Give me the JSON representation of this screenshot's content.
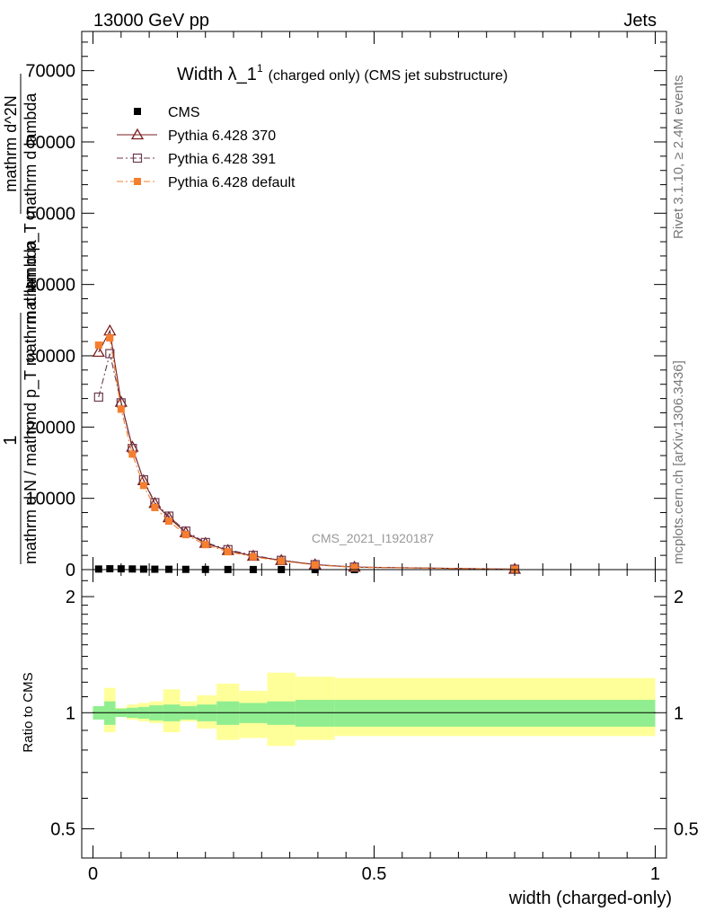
{
  "header": {
    "left": "13000 GeV pp",
    "right": "Jets"
  },
  "side": {
    "rivet": "Rivet 3.1.10, ≥ 2.4M events",
    "mcplots": "mcplots.cern.ch [arXiv:1306.3436]"
  },
  "watermark": "CMS_2021_I1920187",
  "chart_data": [
    {
      "type": "line",
      "title": "Width λ_1",
      "title_sup": "1",
      "subtitle": "(charged only) (CMS jet substructure)",
      "ylabel_stack": [
        "1",
        "mathrm d N / mathrmd p_T mathrm d lambda",
        "mathrm d^2N",
        "mathrm d p_T mathrm d lambda"
      ],
      "xlim": [
        -0.02,
        1.02
      ],
      "ylim": [
        0,
        75500
      ],
      "y_ticks": [
        0,
        10000,
        20000,
        30000,
        40000,
        50000,
        60000,
        70000
      ],
      "y_tick_labels": [
        "0",
        "10000",
        "20000",
        "30000",
        "40000",
        "50000",
        "60000",
        "70000"
      ],
      "legend_placement": "top-left",
      "x": [
        0.01,
        0.03,
        0.05,
        0.07,
        0.09,
        0.11,
        0.135,
        0.165,
        0.2,
        0.24,
        0.285,
        0.335,
        0.395,
        0.465,
        0.75
      ],
      "series": [
        {
          "name": "CMS",
          "color": "#000000",
          "marker": "square",
          "values": [
            80,
            120,
            110,
            90,
            70,
            55,
            45,
            35,
            25,
            18,
            12,
            8,
            4,
            2,
            0.2
          ]
        },
        {
          "name": "Pythia 6.428 370",
          "color": "#7b1c1c",
          "marker": "triangle-open",
          "dash": "solid",
          "values": [
            30500,
            33500,
            23500,
            17200,
            12500,
            9300,
            7300,
            5200,
            3700,
            2700,
            1900,
            1300,
            700,
            350,
            60
          ]
        },
        {
          "name": "Pythia 6.428 391",
          "color": "#6b3a50",
          "marker": "square-open",
          "dash": "dash-dot",
          "values": [
            24200,
            30300,
            23400,
            17000,
            12600,
            9400,
            7500,
            5400,
            3800,
            2800,
            2000,
            1300,
            700,
            350,
            60
          ]
        },
        {
          "name": "Pythia 6.428 default",
          "color": "#f57f2f",
          "marker": "square",
          "dash": "dash-dot",
          "values": [
            31500,
            32500,
            22500,
            16200,
            11800,
            8700,
            6800,
            4900,
            3500,
            2500,
            1800,
            1200,
            650,
            320,
            50
          ]
        }
      ]
    },
    {
      "type": "area",
      "ylabel": "Ratio to CMS",
      "xlabel": "width (charged-only)",
      "xlim": [
        -0.02,
        1.02
      ],
      "x_ticks": [
        0,
        0.5,
        1
      ],
      "x_tick_labels": [
        "0",
        "0.5",
        "1"
      ],
      "ylim": [
        0.42,
        2.35
      ],
      "y_ticks": [
        0.5,
        1,
        2
      ],
      "y_tick_labels": [
        "0.5",
        "1",
        "2"
      ],
      "reference_line": 1,
      "bin_edges": [
        0.0,
        0.02,
        0.04,
        0.06,
        0.08,
        0.1,
        0.125,
        0.155,
        0.185,
        0.22,
        0.26,
        0.31,
        0.36,
        0.43,
        1.0
      ],
      "bands": [
        {
          "name": "stat",
          "color": "#90ee90",
          "lo": [
            0.96,
            0.93,
            0.975,
            0.97,
            0.965,
            0.955,
            0.95,
            0.96,
            0.95,
            0.93,
            0.94,
            0.93,
            0.92,
            0.92
          ],
          "hi": [
            1.04,
            1.07,
            1.025,
            1.03,
            1.035,
            1.045,
            1.05,
            1.04,
            1.05,
            1.07,
            1.06,
            1.07,
            1.08,
            1.08
          ]
        },
        {
          "name": "total",
          "color": "#ffff99",
          "lo": [
            0.97,
            0.89,
            0.98,
            0.96,
            0.95,
            0.94,
            0.89,
            0.95,
            0.91,
            0.85,
            0.86,
            0.82,
            0.85,
            0.87
          ],
          "hi": [
            1.03,
            1.16,
            1.03,
            1.05,
            1.06,
            1.07,
            1.15,
            1.07,
            1.11,
            1.19,
            1.14,
            1.27,
            1.24,
            1.23
          ]
        }
      ]
    }
  ]
}
